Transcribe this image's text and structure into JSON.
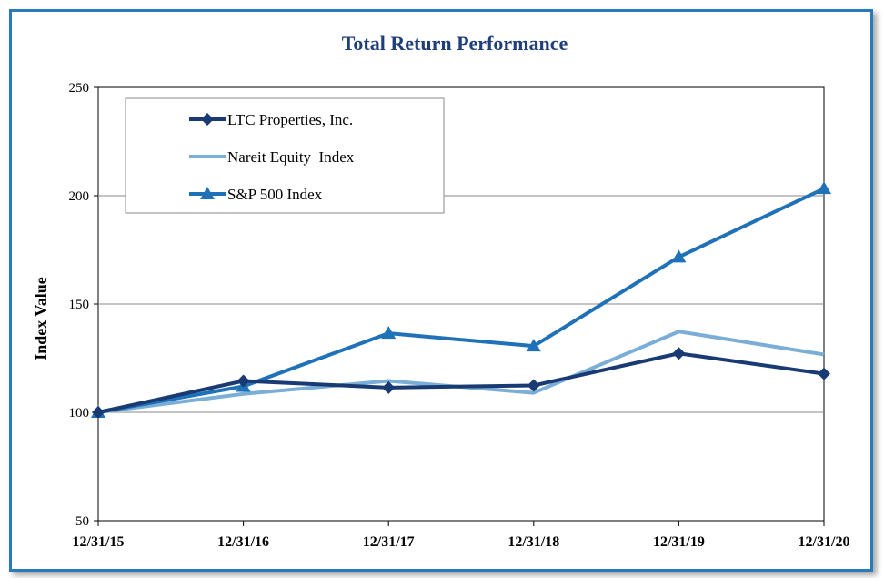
{
  "chart_data": {
    "type": "line",
    "title": "Total Return Performance",
    "xlabel": "",
    "ylabel": "Index Value",
    "categories": [
      "12/31/15",
      "12/31/16",
      "12/31/17",
      "12/31/18",
      "12/31/19",
      "12/31/20"
    ],
    "yticks": [
      50,
      100,
      150,
      200,
      250
    ],
    "ylim": [
      50,
      250
    ],
    "grid": true,
    "legend_position": "top-left",
    "series": [
      {
        "name": "LTC Properties, Inc.",
        "values": [
          100,
          114.5,
          111.4,
          112.4,
          127.2,
          117.8
        ],
        "color": "#1a3a73",
        "marker": "diamond"
      },
      {
        "name": "Nareit Equity  Index",
        "values": [
          100,
          108.5,
          114.5,
          109.0,
          137.3,
          126.7
        ],
        "color": "#7aaed6",
        "marker": "none"
      },
      {
        "name": "S&P 500 Index",
        "values": [
          100,
          112.0,
          136.5,
          130.6,
          171.7,
          203.3
        ],
        "color": "#1f72b8",
        "marker": "triangle"
      }
    ]
  }
}
